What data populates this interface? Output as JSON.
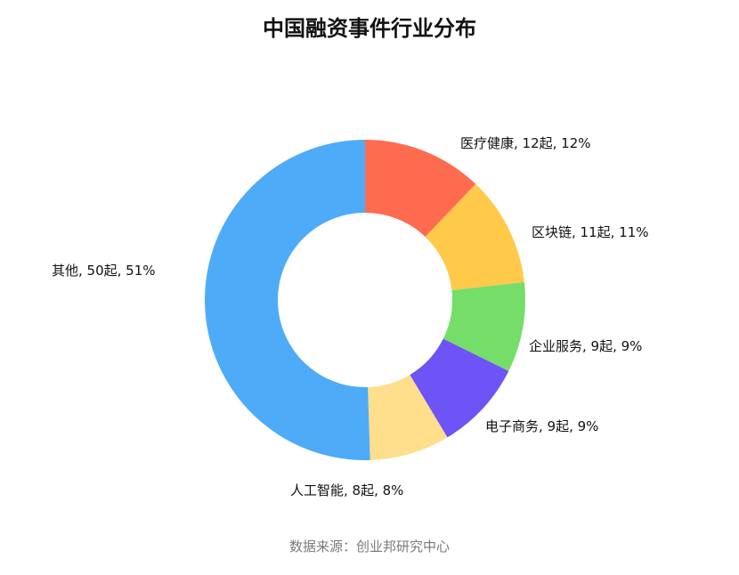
{
  "chart_data": {
    "type": "pie",
    "donut": true,
    "title": "中国融资事件行业分布",
    "slices": [
      {
        "name": "医疗健康",
        "count": 12,
        "percent": 12,
        "color": "#FF6B4F",
        "label": "医疗健康, 12起, 12%"
      },
      {
        "name": "区块链",
        "count": 11,
        "percent": 11,
        "color": "#FFC94A",
        "label": "区块链, 11起, 11%"
      },
      {
        "name": "企业服务",
        "count": 9,
        "percent": 9,
        "color": "#74DE69",
        "label": "企业服务, 9起, 9%"
      },
      {
        "name": "电子商务",
        "count": 9,
        "percent": 9,
        "color": "#6E53F7",
        "label": "电子商务, 9起, 9%"
      },
      {
        "name": "人工智能",
        "count": 8,
        "percent": 8,
        "color": "#FFDE8C",
        "label": "人工智能, 8起, 8%"
      },
      {
        "name": "其他",
        "count": 50,
        "percent": 51,
        "color": "#4EABF8",
        "label": "其他, 50起, 51%"
      }
    ],
    "source": "数据来源：创业邦研究中心"
  }
}
